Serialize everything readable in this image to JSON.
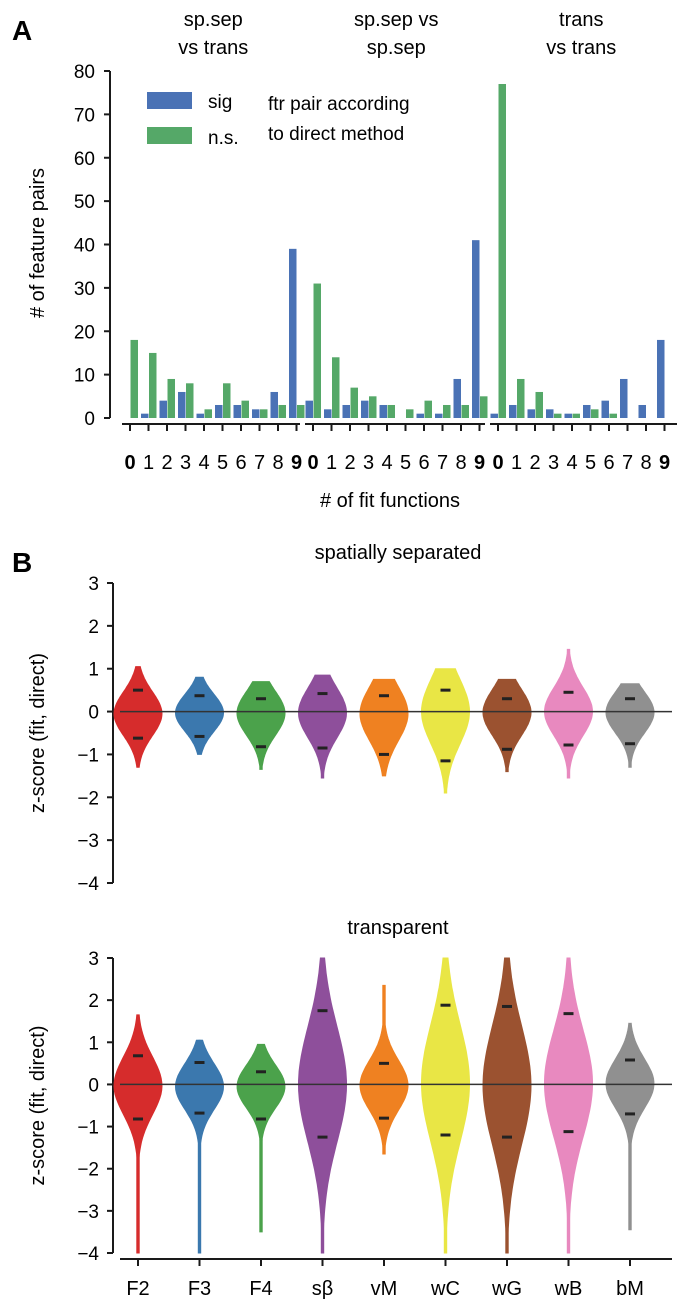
{
  "panels": {
    "a_letter": "A",
    "b_letter": "B"
  },
  "colors": {
    "sig": "#4a72b5",
    "ns": "#55a868",
    "axis": "#1a1a1a",
    "violins": [
      "#d62c2c",
      "#3b78ae",
      "#4ba24b",
      "#8e4f9b",
      "#ef8121",
      "#e9e645",
      "#9b5230",
      "#e889bf",
      "#909090"
    ]
  },
  "chart_data": [
    {
      "type": "bar",
      "panel": "A",
      "ylabel": "# of feature pairs",
      "xlabel": "# of fit functions",
      "ylim": [
        0,
        80
      ],
      "yticks": [
        0,
        10,
        20,
        30,
        40,
        50,
        60,
        70,
        80
      ],
      "categories": [
        "0",
        "1",
        "2",
        "3",
        "4",
        "5",
        "6",
        "7",
        "8",
        "9"
      ],
      "legend": {
        "entries": [
          "sig",
          "n.s."
        ],
        "note_line1": "ftr pair according",
        "note_line2": "to direct method",
        "placement": "top-left"
      },
      "groups": [
        {
          "title_line1": "sp.sep",
          "title_line2": "vs trans",
          "series": [
            {
              "name": "sig",
              "values": [
                0,
                1,
                4,
                6,
                1,
                3,
                3,
                2,
                6,
                39
              ]
            },
            {
              "name": "n.s.",
              "values": [
                18,
                15,
                9,
                8,
                2,
                8,
                4,
                2,
                3,
                3
              ]
            }
          ]
        },
        {
          "title_line1": "sp.sep vs",
          "title_line2": "sp.sep",
          "series": [
            {
              "name": "sig",
              "values": [
                4,
                2,
                3,
                4,
                3,
                0,
                1,
                1,
                9,
                41
              ]
            },
            {
              "name": "n.s.",
              "values": [
                31,
                14,
                7,
                5,
                3,
                2,
                4,
                3,
                3,
                5
              ]
            }
          ]
        },
        {
          "title_line1": "trans",
          "title_line2": "vs trans",
          "series": [
            {
              "name": "sig",
              "values": [
                1,
                3,
                2,
                2,
                1,
                3,
                4,
                9,
                3,
                18
              ]
            },
            {
              "name": "n.s.",
              "values": [
                77,
                9,
                6,
                1,
                1,
                2,
                1,
                0,
                0,
                0
              ]
            }
          ]
        }
      ]
    },
    {
      "type": "violin",
      "panel": "B",
      "title": "spatially separated",
      "ylabel": "z-score (fit, direct)",
      "ylim": [
        -4,
        3
      ],
      "yticks": [
        "3",
        "2",
        "1",
        "0",
        "−1",
        "−2",
        "−3",
        "−4"
      ],
      "categories": [
        "F2",
        "F3",
        "F4",
        "sβ",
        "vM",
        "wC",
        "wG",
        "wB",
        "bM"
      ],
      "stats": [
        {
          "median": -0.05,
          "upper": 0.5,
          "lower": -0.62,
          "max": 1.05,
          "min": -1.3
        },
        {
          "median": -0.03,
          "upper": 0.37,
          "lower": -0.58,
          "max": 0.8,
          "min": -1.0
        },
        {
          "median": -0.04,
          "upper": 0.3,
          "lower": -0.82,
          "max": 0.7,
          "min": -1.35
        },
        {
          "median": -0.03,
          "upper": 0.42,
          "lower": -0.85,
          "max": 0.85,
          "min": -1.55
        },
        {
          "median": -0.05,
          "upper": 0.37,
          "lower": -1.0,
          "max": 0.75,
          "min": -1.5
        },
        {
          "median": 0.0,
          "upper": 0.5,
          "lower": -1.15,
          "max": 1.0,
          "min": -1.9
        },
        {
          "median": -0.02,
          "upper": 0.3,
          "lower": -0.88,
          "max": 0.75,
          "min": -1.4
        },
        {
          "median": 0.0,
          "upper": 0.45,
          "lower": -0.78,
          "max": 1.45,
          "min": -1.55
        },
        {
          "median": -0.02,
          "upper": 0.3,
          "lower": -0.75,
          "max": 0.65,
          "min": -1.3
        }
      ]
    },
    {
      "type": "violin",
      "panel": "B",
      "title": "transparent",
      "ylabel": "z-score (fit, direct)",
      "ylim": [
        -4,
        3
      ],
      "yticks": [
        "3",
        "2",
        "1",
        "0",
        "−1",
        "−2",
        "−3",
        "−4"
      ],
      "categories": [
        "F2",
        "F3",
        "F4",
        "sβ",
        "vM",
        "wC",
        "wG",
        "wB",
        "bM"
      ],
      "stats": [
        {
          "median": -0.03,
          "upper": 0.68,
          "lower": -0.82,
          "max": 1.65,
          "min": -4.0
        },
        {
          "median": -0.05,
          "upper": 0.52,
          "lower": -0.68,
          "max": 1.05,
          "min": -4.0
        },
        {
          "median": -0.05,
          "upper": 0.3,
          "lower": -0.82,
          "max": 0.95,
          "min": -3.5
        },
        {
          "median": 0.0,
          "upper": 1.75,
          "lower": -1.25,
          "max": 3.0,
          "min": -4.0
        },
        {
          "median": -0.02,
          "upper": 0.5,
          "lower": -0.8,
          "max": 2.35,
          "min": -1.65
        },
        {
          "median": 0.03,
          "upper": 1.88,
          "lower": -1.2,
          "max": 3.0,
          "min": -4.0
        },
        {
          "median": -0.02,
          "upper": 1.85,
          "lower": -1.25,
          "max": 3.0,
          "min": -4.0
        },
        {
          "median": 0.02,
          "upper": 1.68,
          "lower": -1.12,
          "max": 3.0,
          "min": -4.0
        },
        {
          "median": 0.02,
          "upper": 0.58,
          "lower": -0.7,
          "max": 1.45,
          "min": -3.45
        }
      ]
    }
  ]
}
